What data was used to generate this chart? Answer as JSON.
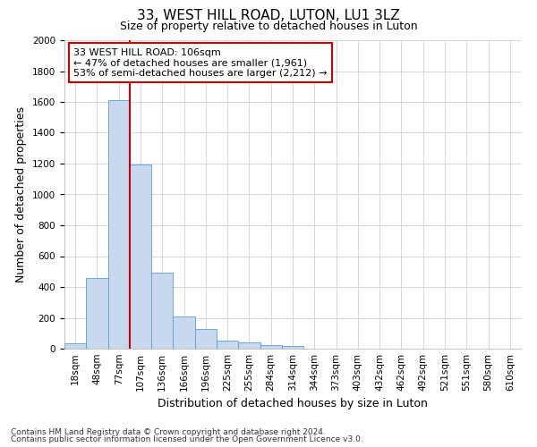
{
  "title": "33, WEST HILL ROAD, LUTON, LU1 3LZ",
  "subtitle": "Size of property relative to detached houses in Luton",
  "xlabel": "Distribution of detached houses by size in Luton",
  "ylabel": "Number of detached properties",
  "footnote1": "Contains HM Land Registry data © Crown copyright and database right 2024.",
  "footnote2": "Contains public sector information licensed under the Open Government Licence v3.0.",
  "bin_labels": [
    "18sqm",
    "48sqm",
    "77sqm",
    "107sqm",
    "136sqm",
    "166sqm",
    "196sqm",
    "225sqm",
    "255sqm",
    "284sqm",
    "314sqm",
    "344sqm",
    "373sqm",
    "403sqm",
    "432sqm",
    "462sqm",
    "492sqm",
    "521sqm",
    "551sqm",
    "580sqm",
    "610sqm"
  ],
  "bar_values": [
    35,
    460,
    1610,
    1195,
    490,
    210,
    130,
    50,
    40,
    25,
    15,
    0,
    0,
    0,
    0,
    0,
    0,
    0,
    0,
    0,
    0
  ],
  "bar_color": "#c9d9ed",
  "bar_edge_color": "#5b9bd5",
  "ylim": [
    0,
    2000
  ],
  "yticks": [
    0,
    200,
    400,
    600,
    800,
    1000,
    1200,
    1400,
    1600,
    1800,
    2000
  ],
  "red_line_bin_index": 3,
  "red_line_color": "#cc0000",
  "annotation_box_text": "33 WEST HILL ROAD: 106sqm\n← 47% of detached houses are smaller (1,961)\n53% of semi-detached houses are larger (2,212) →",
  "background_color": "#ffffff",
  "grid_color": "#c8c8c8",
  "title_fontsize": 11,
  "subtitle_fontsize": 9,
  "ylabel_fontsize": 9,
  "xlabel_fontsize": 9,
  "tick_fontsize": 7.5,
  "annotation_fontsize": 8
}
